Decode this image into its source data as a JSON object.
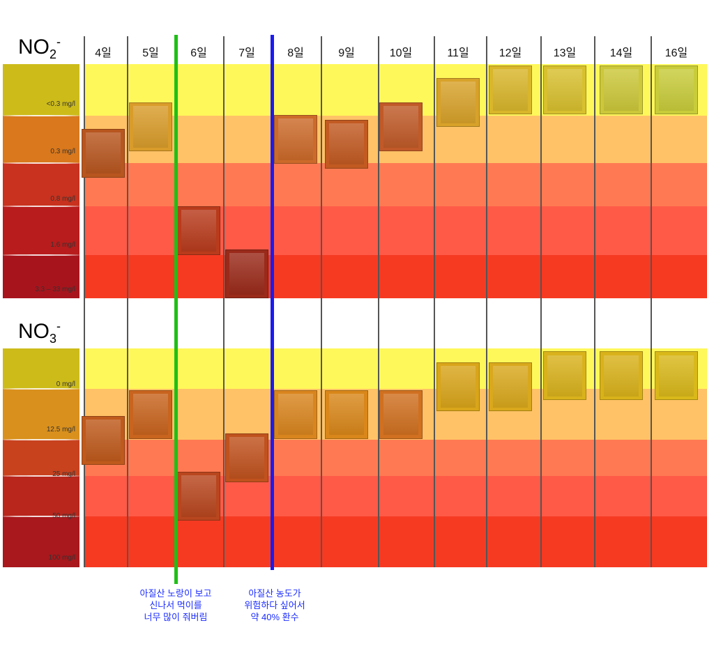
{
  "no2": {
    "formula": "NO",
    "subscript": "2",
    "superscript": "-",
    "ref_labels": [
      "<0.3 mg/l",
      "0.3 mg/l",
      "0.8 mg/l",
      "1.6 mg/l",
      "3.3 – 33 mg/l"
    ]
  },
  "no3": {
    "formula": "NO",
    "subscript": "3",
    "superscript": "-",
    "ref_labels": [
      "0 mg/l",
      "12.5 mg/l",
      "25 mg/l",
      "50 mg/l",
      "100 mg/l"
    ]
  },
  "days": [
    "4일",
    "5일",
    "6일",
    "7일",
    "8일",
    "9일",
    "10일",
    "11일",
    "12일",
    "13일",
    "14일",
    "16일"
  ],
  "notes": {
    "green": [
      "아질산 노랑이 보고",
      "신나서 먹이를",
      "너무 많이 줘버림"
    ],
    "blue": [
      "아질산 농도가",
      "위험하다 싶어서",
      "약 40% 환수"
    ]
  },
  "colors": {
    "level_bands": [
      "#fff85a",
      "#ffc266",
      "#ff7a52",
      "#ff5a48",
      "#f63a22"
    ],
    "green_marker": "#1fbf16",
    "blue_marker": "#1b1bf0",
    "note_text": "#1b2cff"
  },
  "chart_data": [
    {
      "type": "table",
      "title": "NO2-",
      "categories": [
        "4일",
        "5일",
        "6일",
        "7일",
        "8일",
        "9일",
        "10일",
        "11일",
        "12일",
        "13일",
        "14일",
        "16일"
      ],
      "levels": [
        "<0.3 mg/l",
        "0.3 mg/l",
        "0.8 mg/l",
        "1.6 mg/l",
        "3.3 – 33 mg/l"
      ],
      "values": [
        0.45,
        0.25,
        1.6,
        3.3,
        0.3,
        0.35,
        0.25,
        0.15,
        0.1,
        0.1,
        0.1,
        0.1
      ],
      "sample_colors": [
        "#b8561f",
        "#d99c2a",
        "#b83b1c",
        "#9a2a1a",
        "#cc6a2a",
        "#c25a22",
        "#c05a28",
        "#d8a22a",
        "#d9b62a",
        "#d8c02e",
        "#ccc83a",
        "#c8cc3a"
      ]
    },
    {
      "type": "table",
      "title": "NO3-",
      "categories": [
        "4일",
        "5일",
        "6일",
        "7일",
        "8일",
        "9일",
        "10일",
        "11일",
        "12일",
        "13일",
        "14일",
        "16일"
      ],
      "levels": [
        "0 mg/l",
        "12.5 mg/l",
        "25 mg/l",
        "50 mg/l",
        "100 mg/l"
      ],
      "values": [
        20,
        12.5,
        50,
        25,
        12.5,
        12.5,
        12.5,
        5,
        5,
        2,
        2,
        2
      ],
      "sample_colors": [
        "#bf5a1c",
        "#c8641e",
        "#b8461e",
        "#c0521e",
        "#d9851e",
        "#d9871a",
        "#d07020",
        "#d9a51a",
        "#d9a81c",
        "#d9b21c",
        "#d9b21a",
        "#d9b81a"
      ]
    }
  ]
}
